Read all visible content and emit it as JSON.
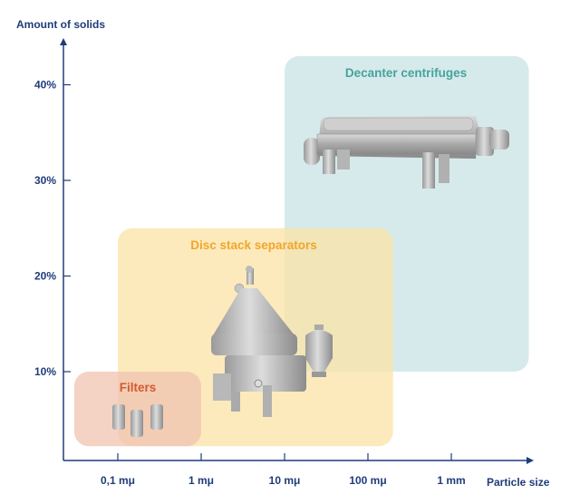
{
  "chart_data": {
    "type": "region-diagram",
    "xlabel": "Particle size",
    "ylabel": "Amount of solids",
    "x_scale": "log",
    "x_ticks": [
      {
        "value": 0.1,
        "label": "0,1 mμ"
      },
      {
        "value": 1,
        "label": "1 mμ"
      },
      {
        "value": 10,
        "label": "10 mμ"
      },
      {
        "value": 100,
        "label": "100 mμ"
      },
      {
        "value": 1000,
        "label": "1 mm"
      }
    ],
    "y_ticks": [
      {
        "value": 10,
        "label": "10%"
      },
      {
        "value": 20,
        "label": "20%"
      },
      {
        "value": 30,
        "label": "30%"
      },
      {
        "value": 40,
        "label": "40%"
      }
    ],
    "regions": [
      {
        "name": "Decanter centrifuges",
        "x_range_mu": [
          10,
          8500
        ],
        "y_range_pct": [
          10,
          43
        ],
        "fill": "#cfe6e8",
        "title_color": "#46a39c",
        "icon": "decanter-centrifuge"
      },
      {
        "name": "Disc stack separators",
        "x_range_mu": [
          0.1,
          200
        ],
        "y_range_pct": [
          2.2,
          25
        ],
        "fill": "#fbe3a6",
        "title_color": "#f2a62a",
        "icon": "disc-stack-separator"
      },
      {
        "name": "Filters",
        "x_range_mu": [
          0.03,
          1
        ],
        "y_range_pct": [
          2.2,
          10
        ],
        "fill": "#f0c3b0",
        "title_color": "#d25a32",
        "icon": "filter-cartridges"
      }
    ],
    "axis_color": "#1f3c7a"
  }
}
